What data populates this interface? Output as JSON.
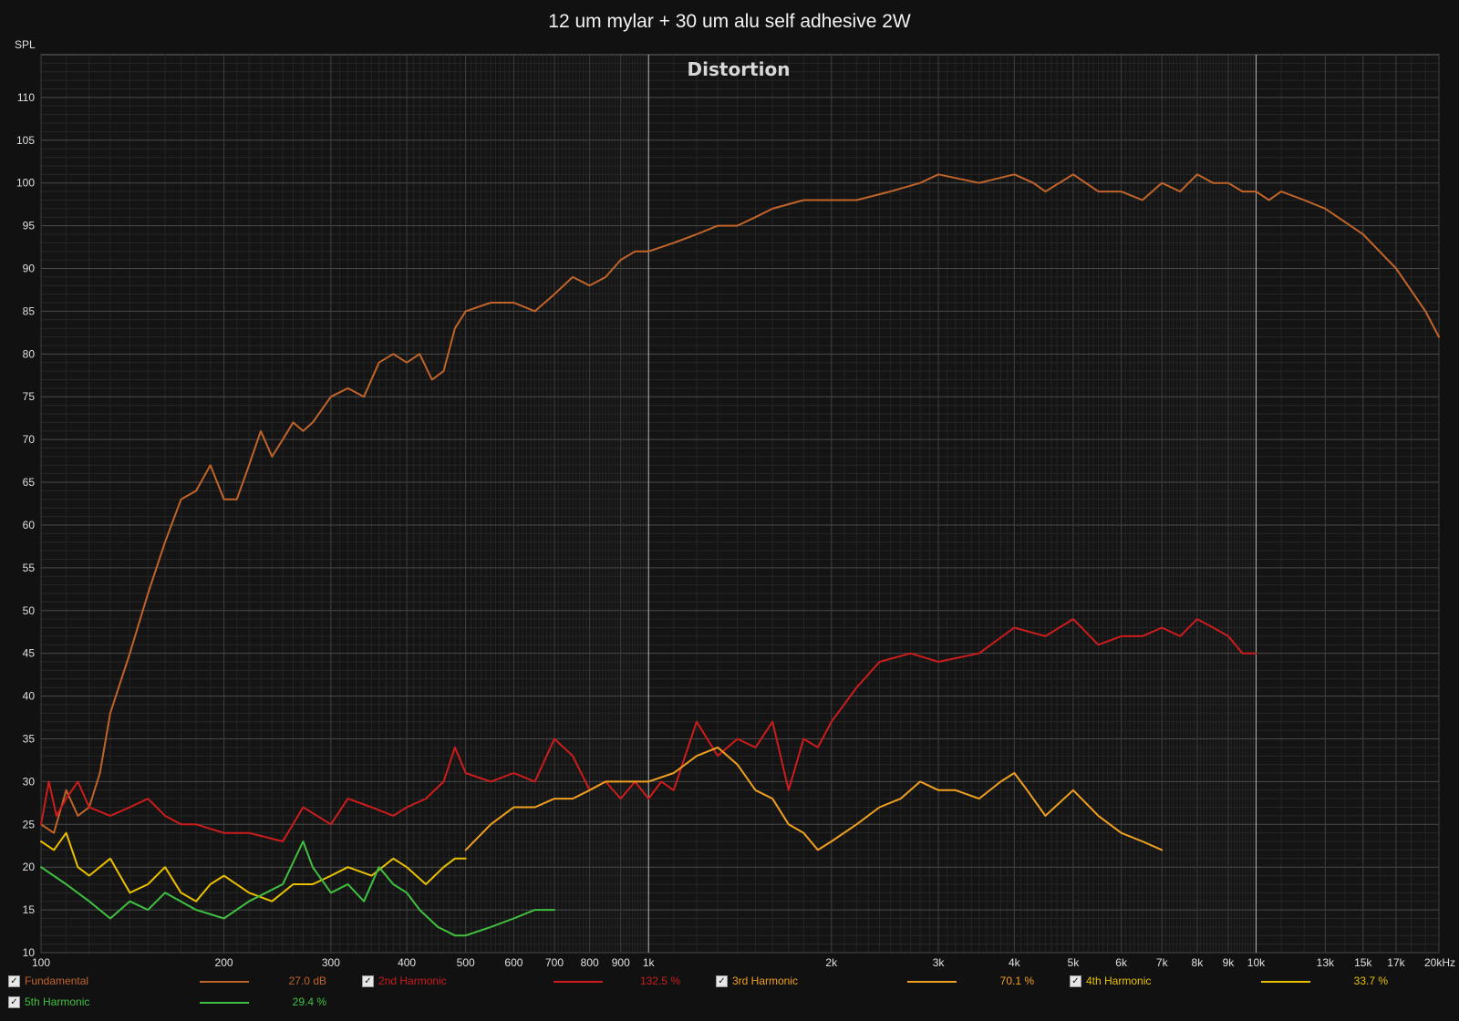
{
  "chart_data": {
    "type": "line",
    "title": "12 um mylar + 30 um alu self adhesive 2W",
    "subtitle": "Distortion",
    "ylabel": "SPL",
    "xlabel": "",
    "x_scale": "log",
    "xlim": [
      100,
      20000
    ],
    "ylim": [
      10,
      115
    ],
    "grid": true,
    "x_ticks": [
      {
        "v": 100,
        "label": "100"
      },
      {
        "v": 200,
        "label": "200"
      },
      {
        "v": 300,
        "label": "300"
      },
      {
        "v": 400,
        "label": "400"
      },
      {
        "v": 500,
        "label": "500"
      },
      {
        "v": 600,
        "label": "600"
      },
      {
        "v": 700,
        "label": "700"
      },
      {
        "v": 800,
        "label": "800"
      },
      {
        "v": 900,
        "label": "900"
      },
      {
        "v": 1000,
        "label": "1k"
      },
      {
        "v": 2000,
        "label": "2k"
      },
      {
        "v": 3000,
        "label": "3k"
      },
      {
        "v": 4000,
        "label": "4k"
      },
      {
        "v": 5000,
        "label": "5k"
      },
      {
        "v": 6000,
        "label": "6k"
      },
      {
        "v": 7000,
        "label": "7k"
      },
      {
        "v": 8000,
        "label": "8k"
      },
      {
        "v": 9000,
        "label": "9k"
      },
      {
        "v": 10000,
        "label": "10k"
      },
      {
        "v": 13000,
        "label": "13k"
      },
      {
        "v": 15000,
        "label": "15k"
      },
      {
        "v": 17000,
        "label": "17k"
      },
      {
        "v": 20000,
        "label": "20kHz"
      }
    ],
    "y_ticks": [
      10,
      15,
      20,
      25,
      30,
      35,
      40,
      45,
      50,
      55,
      60,
      65,
      70,
      75,
      80,
      85,
      90,
      95,
      100,
      105,
      110
    ],
    "legend_position": "bottom",
    "series": [
      {
        "name": "Fundamental",
        "value_label": "27.0 dB",
        "color": "#c0642a",
        "x": [
          100,
          105,
          110,
          115,
          120,
          125,
          130,
          140,
          150,
          160,
          170,
          180,
          190,
          200,
          210,
          220,
          230,
          240,
          250,
          260,
          270,
          280,
          300,
          320,
          340,
          360,
          380,
          400,
          420,
          440,
          460,
          480,
          500,
          550,
          600,
          650,
          700,
          750,
          800,
          850,
          900,
          950,
          1000,
          1100,
          1200,
          1300,
          1400,
          1500,
          1600,
          1800,
          2000,
          2200,
          2500,
          2800,
          3000,
          3500,
          4000,
          4300,
          4500,
          5000,
          5500,
          6000,
          6500,
          7000,
          7500,
          8000,
          8500,
          9000,
          9500,
          10000,
          10500,
          11000,
          12000,
          13000,
          15000,
          17000,
          19000,
          20000
        ],
        "y": [
          25,
          24,
          29,
          26,
          27,
          31,
          38,
          45,
          52,
          58,
          63,
          64,
          67,
          63,
          63,
          67,
          71,
          68,
          70,
          72,
          71,
          72,
          75,
          76,
          75,
          79,
          80,
          79,
          80,
          77,
          78,
          83,
          85,
          86,
          86,
          85,
          87,
          89,
          88,
          89,
          91,
          92,
          92,
          93,
          94,
          95,
          95,
          96,
          97,
          98,
          98,
          98,
          99,
          100,
          101,
          100,
          101,
          100,
          99,
          101,
          99,
          99,
          98,
          100,
          99,
          101,
          100,
          100,
          99,
          99,
          98,
          99,
          98,
          97,
          94,
          90,
          85,
          82
        ]
      },
      {
        "name": "2nd Harmonic",
        "value_label": "132.5 %",
        "color": "#cc1c1c",
        "x": [
          100,
          103,
          106,
          110,
          115,
          120,
          130,
          140,
          150,
          160,
          170,
          180,
          200,
          220,
          250,
          270,
          300,
          320,
          350,
          380,
          400,
          430,
          460,
          480,
          500,
          550,
          600,
          650,
          700,
          750,
          800,
          850,
          900,
          950,
          1000,
          1050,
          1100,
          1200,
          1300,
          1400,
          1500,
          1600,
          1700,
          1800,
          1900,
          2000,
          2200,
          2400,
          2700,
          3000,
          3500,
          4000,
          4500,
          5000,
          5500,
          6000,
          6500,
          7000,
          7500,
          8000,
          8500,
          9000,
          9500,
          10000
        ],
        "y": [
          25,
          30,
          26,
          28,
          30,
          27,
          26,
          27,
          28,
          26,
          25,
          25,
          24,
          24,
          23,
          27,
          25,
          28,
          27,
          26,
          27,
          28,
          30,
          34,
          31,
          30,
          31,
          30,
          35,
          33,
          29,
          30,
          28,
          30,
          28,
          30,
          29,
          37,
          33,
          35,
          34,
          37,
          29,
          35,
          34,
          37,
          41,
          44,
          45,
          44,
          45,
          48,
          47,
          49,
          46,
          47,
          47,
          48,
          47,
          49,
          48,
          47,
          45,
          45
        ]
      },
      {
        "name": "3rd Harmonic",
        "value_label": "70.1 %",
        "color": "#f0a020",
        "x": [
          500,
          550,
          600,
          650,
          700,
          750,
          800,
          850,
          900,
          950,
          1000,
          1100,
          1200,
          1300,
          1400,
          1500,
          1600,
          1700,
          1800,
          1900,
          2000,
          2200,
          2400,
          2600,
          2800,
          3000,
          3200,
          3500,
          3800,
          4000,
          4200,
          4500,
          5000,
          5500,
          6000,
          6500,
          7000
        ],
        "y": [
          22,
          25,
          27,
          27,
          28,
          28,
          29,
          30,
          30,
          30,
          30,
          31,
          33,
          34,
          32,
          29,
          28,
          25,
          24,
          22,
          23,
          25,
          27,
          28,
          30,
          29,
          29,
          28,
          30,
          31,
          29,
          26,
          29,
          26,
          24,
          23,
          22
        ]
      },
      {
        "name": "4th Harmonic",
        "value_label": "33.7 %",
        "color": "#e8c000",
        "x": [
          100,
          105,
          110,
          115,
          120,
          130,
          140,
          150,
          160,
          170,
          180,
          190,
          200,
          220,
          240,
          260,
          280,
          300,
          320,
          350,
          380,
          400,
          430,
          460,
          480,
          500
        ],
        "y": [
          23,
          22,
          24,
          20,
          19,
          21,
          17,
          18,
          20,
          17,
          16,
          18,
          19,
          17,
          16,
          18,
          18,
          19,
          20,
          19,
          21,
          20,
          18,
          20,
          21,
          21
        ]
      },
      {
        "name": "5th Harmonic",
        "value_label": "29.4 %",
        "color": "#40c040",
        "x": [
          100,
          110,
          120,
          130,
          140,
          150,
          160,
          180,
          200,
          220,
          250,
          270,
          280,
          300,
          320,
          340,
          360,
          380,
          400,
          420,
          450,
          480,
          500,
          550,
          600,
          650,
          700
        ],
        "y": [
          20,
          18,
          16,
          14,
          16,
          15,
          17,
          15,
          14,
          16,
          18,
          23,
          20,
          17,
          18,
          16,
          20,
          18,
          17,
          15,
          13,
          12,
          12,
          13,
          14,
          15,
          15
        ]
      }
    ]
  }
}
